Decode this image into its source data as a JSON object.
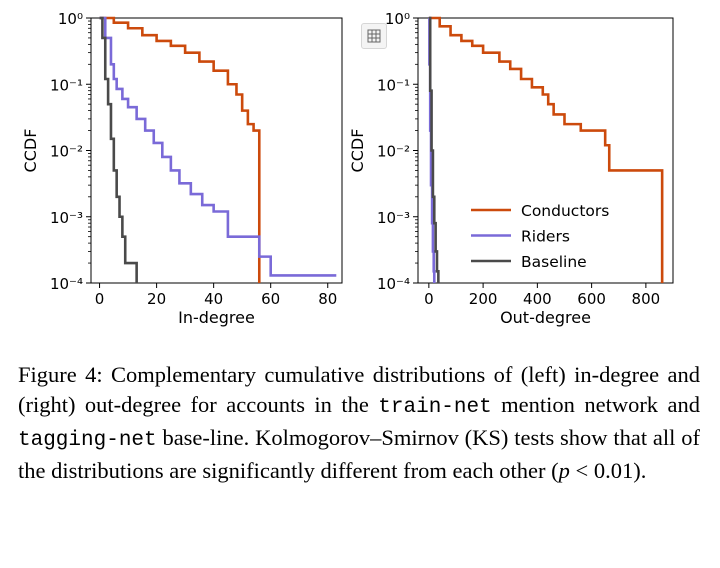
{
  "colors": {
    "Conductors": "#cc4a0c",
    "Riders": "#7a6ad8",
    "Baseline": "#4a4a4a"
  },
  "chart_data": [
    {
      "type": "line",
      "title": "",
      "xlabel": "In-degree",
      "ylabel": "CCDF",
      "yscale": "log",
      "xlim": [
        -3,
        85
      ],
      "ylim": [
        0.0001,
        1
      ],
      "xticks": [
        0,
        20,
        40,
        60,
        80
      ],
      "yticks": [
        "10⁰",
        "10⁻¹",
        "10⁻²",
        "10⁻³",
        "10⁻⁴"
      ],
      "series": [
        {
          "name": "Conductors",
          "x": [
            0,
            5,
            10,
            15,
            20,
            25,
            30,
            35,
            40,
            45,
            48,
            50,
            52,
            54,
            55,
            56
          ],
          "y": [
            1,
            0.85,
            0.7,
            0.55,
            0.45,
            0.38,
            0.3,
            0.22,
            0.16,
            0.1,
            0.07,
            0.04,
            0.025,
            0.02,
            0.02,
            0.0001
          ]
        },
        {
          "name": "Riders",
          "x": [
            0,
            2,
            4,
            5,
            6,
            8,
            10,
            13,
            16,
            19,
            22,
            25,
            28,
            32,
            36,
            40,
            45,
            50,
            56,
            60,
            83
          ],
          "y": [
            1,
            0.5,
            0.2,
            0.12,
            0.085,
            0.06,
            0.045,
            0.03,
            0.02,
            0.013,
            0.008,
            0.005,
            0.0032,
            0.0022,
            0.0015,
            0.0012,
            0.0005,
            0.0005,
            0.00025,
            0.00013,
            0.00013
          ]
        },
        {
          "name": "Baseline",
          "x": [
            0,
            1,
            2,
            3,
            4,
            5,
            6,
            7,
            8,
            9,
            13,
            13
          ],
          "y": [
            1,
            0.5,
            0.12,
            0.05,
            0.015,
            0.005,
            0.002,
            0.001,
            0.0005,
            0.0002,
            0.0002,
            0.0001
          ]
        }
      ]
    },
    {
      "type": "line",
      "title": "",
      "xlabel": "Out-degree",
      "ylabel": "CCDF",
      "yscale": "log",
      "xlim": [
        -40,
        900
      ],
      "ylim": [
        0.0001,
        1
      ],
      "xticks": [
        0,
        200,
        400,
        600,
        800
      ],
      "yticks": [
        "10⁰",
        "10⁻¹",
        "10⁻²",
        "10⁻³",
        "10⁻⁴"
      ],
      "legend": "lower-right",
      "series": [
        {
          "name": "Conductors",
          "x": [
            0,
            40,
            80,
            120,
            160,
            200,
            260,
            300,
            340,
            380,
            420,
            440,
            460,
            500,
            560,
            600,
            640,
            650,
            665,
            680,
            860,
            860
          ],
          "y": [
            1,
            0.75,
            0.55,
            0.45,
            0.38,
            0.3,
            0.22,
            0.17,
            0.12,
            0.09,
            0.07,
            0.05,
            0.035,
            0.025,
            0.02,
            0.02,
            0.02,
            0.012,
            0.005,
            0.005,
            0.005,
            0.0001
          ]
        },
        {
          "name": "Riders",
          "x": [
            0,
            2,
            5,
            8,
            12,
            15,
            18,
            20
          ],
          "y": [
            1,
            0.2,
            0.02,
            0.003,
            0.0008,
            0.0003,
            0.00015,
            0.0001
          ]
        },
        {
          "name": "Baseline",
          "x": [
            0,
            5,
            10,
            15,
            20,
            25,
            30,
            35
          ],
          "y": [
            1,
            0.08,
            0.01,
            0.002,
            0.0008,
            0.0003,
            0.00015,
            0.0001
          ]
        }
      ]
    }
  ],
  "caption": {
    "p1": "Figure 4: Complementary cumulative distributions of (left) in-degree and (right) out-degree for accounts in the ",
    "code1": "train-net",
    "p2": " mention network and ",
    "code2": "tagging-net",
    "p3": " base-line. Kolmogorov–Smirnov (KS) tests show that all of the distributions are significantly different from each other (",
    "p_var": "p",
    "p4": " < 0.01)."
  }
}
